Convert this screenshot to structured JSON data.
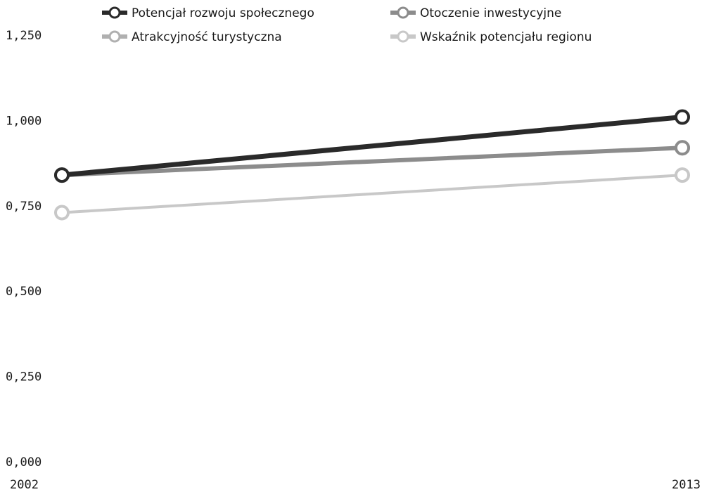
{
  "chart_data": {
    "type": "line",
    "x": [
      "2002",
      "2013"
    ],
    "ylim": [
      0,
      1.25
    ],
    "yticks": [
      "0,000",
      "0,250",
      "0,500",
      "0,750",
      "1,000",
      "1,250"
    ],
    "grid": false,
    "legend_position": "top",
    "series": [
      {
        "name": "Potencjał rozwoju społecznego",
        "values": [
          0.84,
          1.01
        ],
        "color": "#2a2a2a"
      },
      {
        "name": "Otoczenie inwestycyjne",
        "values": [
          0.84,
          0.92
        ],
        "color": "#8c8c8c"
      },
      {
        "name": "Atrakcyjność turystyczna",
        "values": [
          0.84,
          0.92
        ],
        "color": "#b0b0b0"
      },
      {
        "name": "Wskaźnik potencjału regionu",
        "values": [
          0.73,
          0.84
        ],
        "color": "#c8c8c8"
      }
    ]
  }
}
